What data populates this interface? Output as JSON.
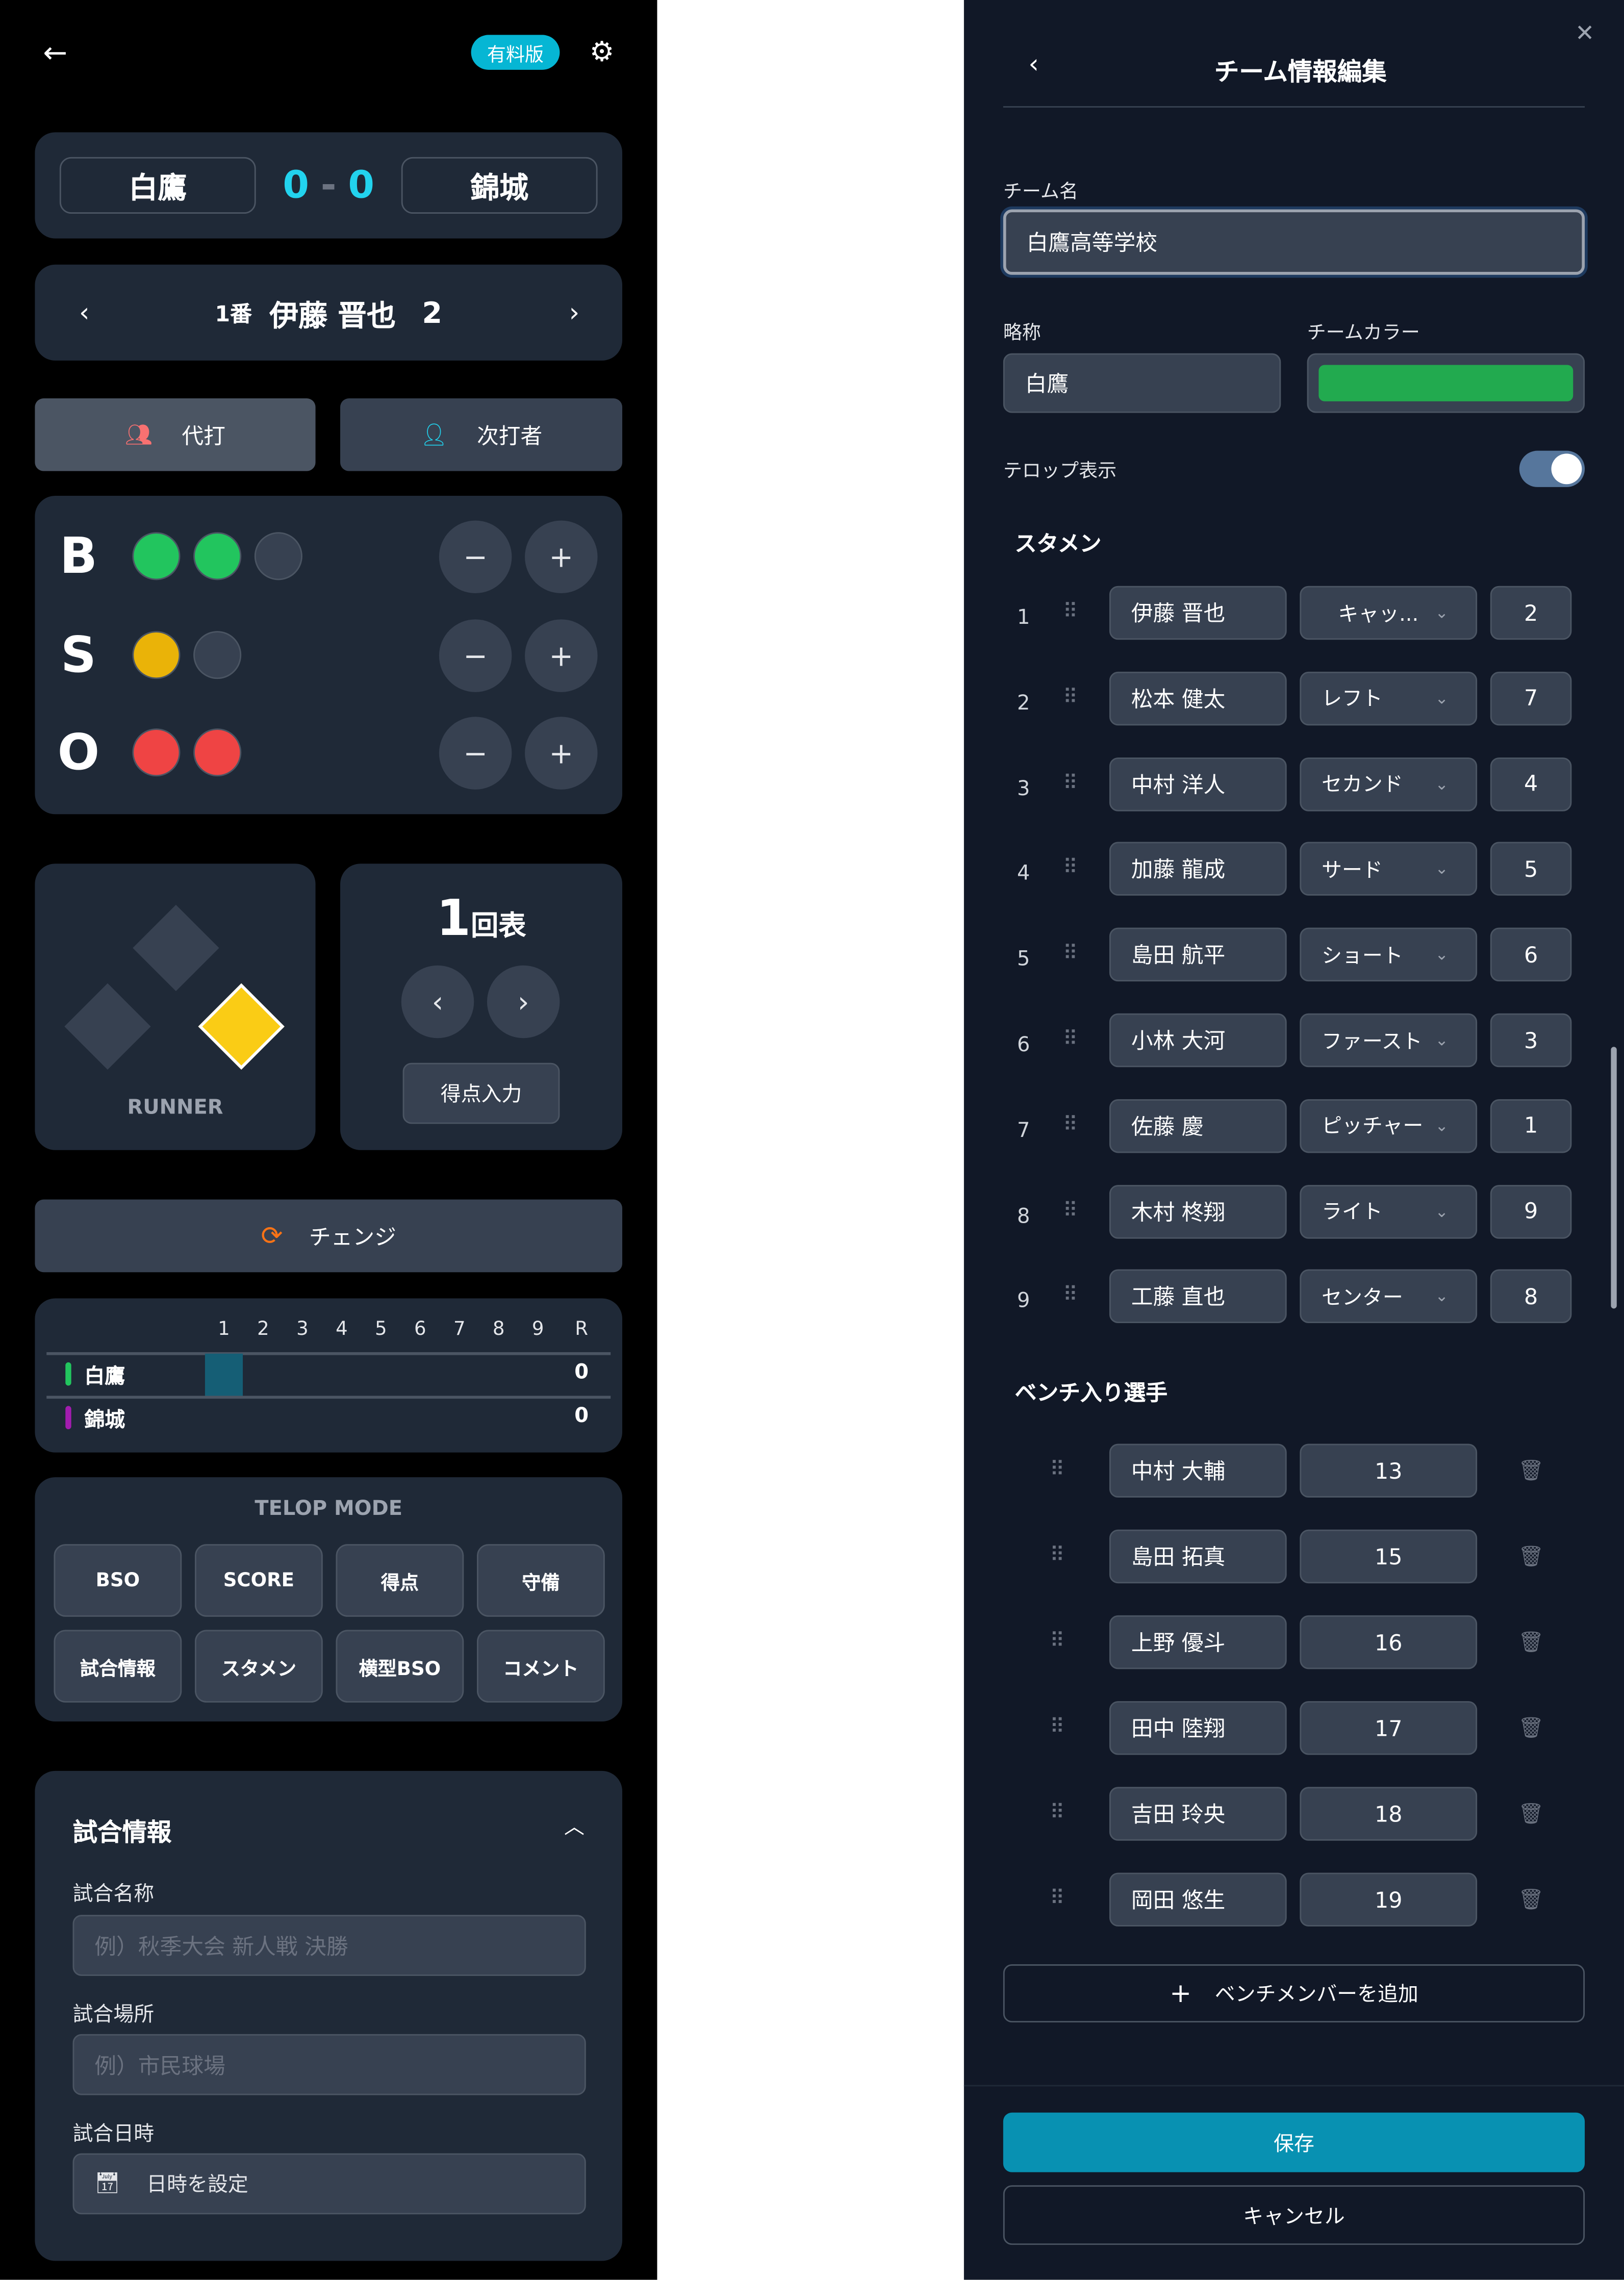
{
  "left": {
    "badge": "有料版",
    "score": {
      "home": "白鷹",
      "away": "錦城",
      "home_score": "0",
      "sep": "-",
      "away_score": "0"
    },
    "batter": {
      "order": "1番",
      "name": "伊藤 晋也",
      "number": "2"
    },
    "pinch_hit": "代打",
    "next_batter": "次打者",
    "bso": {
      "labels": [
        "B",
        "S",
        "O"
      ],
      "balls": 2,
      "strikes": 1,
      "outs": 2,
      "max": [
        3,
        2,
        2
      ],
      "colors": {
        "ball": "#22c55e",
        "strike": "#eab308",
        "out": "#ef4444"
      },
      "minus": "−",
      "plus": "+"
    },
    "runner": {
      "label": "RUNNER",
      "bases": {
        "first": true,
        "second": false,
        "third": false
      },
      "color": "#facc15"
    },
    "inning": {
      "number": "1",
      "half": "回表",
      "score_input": "得点入力"
    },
    "change": "チェンジ",
    "scoreboard": {
      "innings": [
        "1",
        "2",
        "3",
        "4",
        "5",
        "6",
        "7",
        "8",
        "9",
        "R"
      ],
      "teams": [
        {
          "name": "白鷹",
          "color": "#22c55e",
          "runs": "0"
        },
        {
          "name": "錦城",
          "color": "#a21caf",
          "runs": "0"
        }
      ]
    },
    "telop": {
      "title": "TELOP MODE",
      "buttons": [
        "BSO",
        "SCORE",
        "得点",
        "守備",
        "試合情報",
        "スタメン",
        "横型BSO",
        "コメント"
      ]
    },
    "game_info": {
      "title": "試合情報",
      "name_label": "試合名称",
      "name_placeholder": "例）秋季大会 新人戦 決勝",
      "place_label": "試合場所",
      "place_placeholder": "例）市民球場",
      "date_label": "試合日時",
      "date_placeholder": "日時を設定"
    }
  },
  "right": {
    "title": "チーム情報編集",
    "team_name_label": "チーム名",
    "team_name": "白鷹高等学校",
    "abbr_label": "略称",
    "abbr": "白鷹",
    "color_label": "チームカラー",
    "team_color": "#22aa4f",
    "telop_label": "テロップ表示",
    "telop_on": true,
    "starters_label": "スタメン",
    "starters": [
      {
        "order": "1",
        "name": "伊藤 晋也",
        "position": "キャッ...",
        "number": "2"
      },
      {
        "order": "2",
        "name": "松本 健太",
        "position": "レフト",
        "number": "7"
      },
      {
        "order": "3",
        "name": "中村 洋人",
        "position": "セカンド",
        "number": "4"
      },
      {
        "order": "4",
        "name": "加藤 龍成",
        "position": "サード",
        "number": "5"
      },
      {
        "order": "5",
        "name": "島田 航平",
        "position": "ショート",
        "number": "6"
      },
      {
        "order": "6",
        "name": "小林 大河",
        "position": "ファースト",
        "number": "3"
      },
      {
        "order": "7",
        "name": "佐藤 慶",
        "position": "ピッチャー",
        "number": "1"
      },
      {
        "order": "8",
        "name": "木村 柊翔",
        "position": "ライト",
        "number": "9"
      },
      {
        "order": "9",
        "name": "工藤 直也",
        "position": "センター",
        "number": "8"
      }
    ],
    "bench_label": "ベンチ入り選手",
    "bench": [
      {
        "name": "中村 大輔",
        "number": "13"
      },
      {
        "name": "島田 拓真",
        "number": "15"
      },
      {
        "name": "上野 優斗",
        "number": "16"
      },
      {
        "name": "田中 陸翔",
        "number": "17"
      },
      {
        "name": "吉田 玲央",
        "number": "18"
      },
      {
        "name": "岡田 悠生",
        "number": "19"
      }
    ],
    "add_bench": "ベンチメンバーを追加",
    "save": "保存",
    "cancel": "キャンセル"
  }
}
